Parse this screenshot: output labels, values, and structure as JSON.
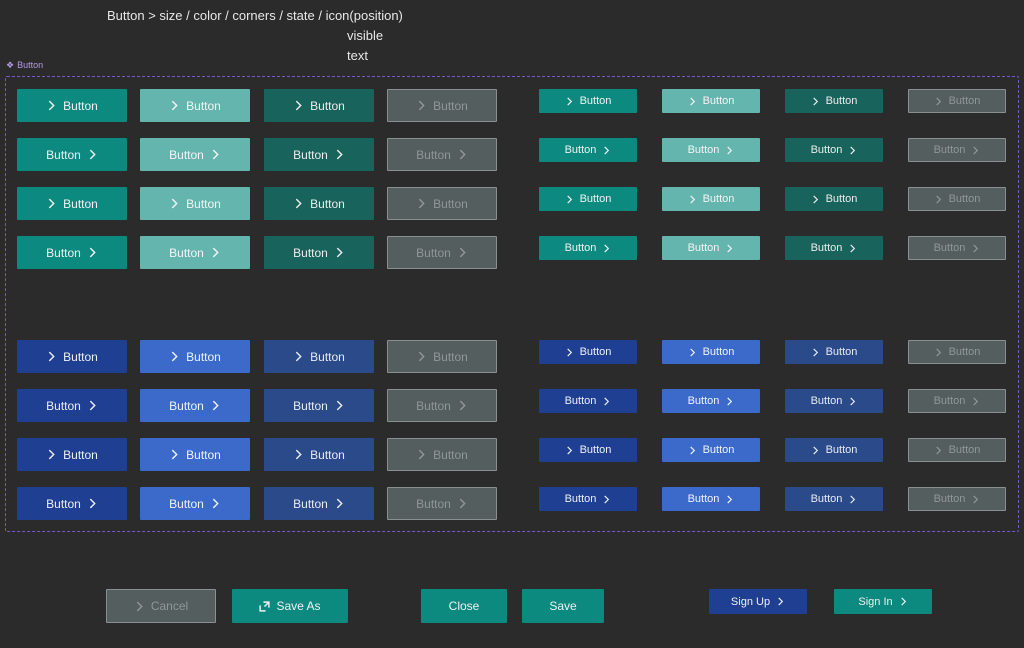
{
  "header": {
    "line1": "Button > size / color / corners / state / icon(position)",
    "line2": "visible",
    "line3": "text"
  },
  "frame": {
    "icon": "component-diamond-icon",
    "label": "Button"
  },
  "variants": {
    "label": "Button",
    "icon": "chevron-right-icon",
    "colors": {
      "teal_primary": "#0d8a80",
      "teal_light": "#64b5ae",
      "teal_dark": "#18645c",
      "disabled": "#545e5f",
      "blue_primary": "#1f3f92",
      "blue_light": "#3b6acb",
      "blue_dark": "#2a4a8a"
    }
  },
  "actions": {
    "cancel": "Cancel",
    "save_as": "Save As",
    "close": "Close",
    "save": "Save",
    "sign_up": "Sign Up",
    "sign_in": "Sign In"
  }
}
